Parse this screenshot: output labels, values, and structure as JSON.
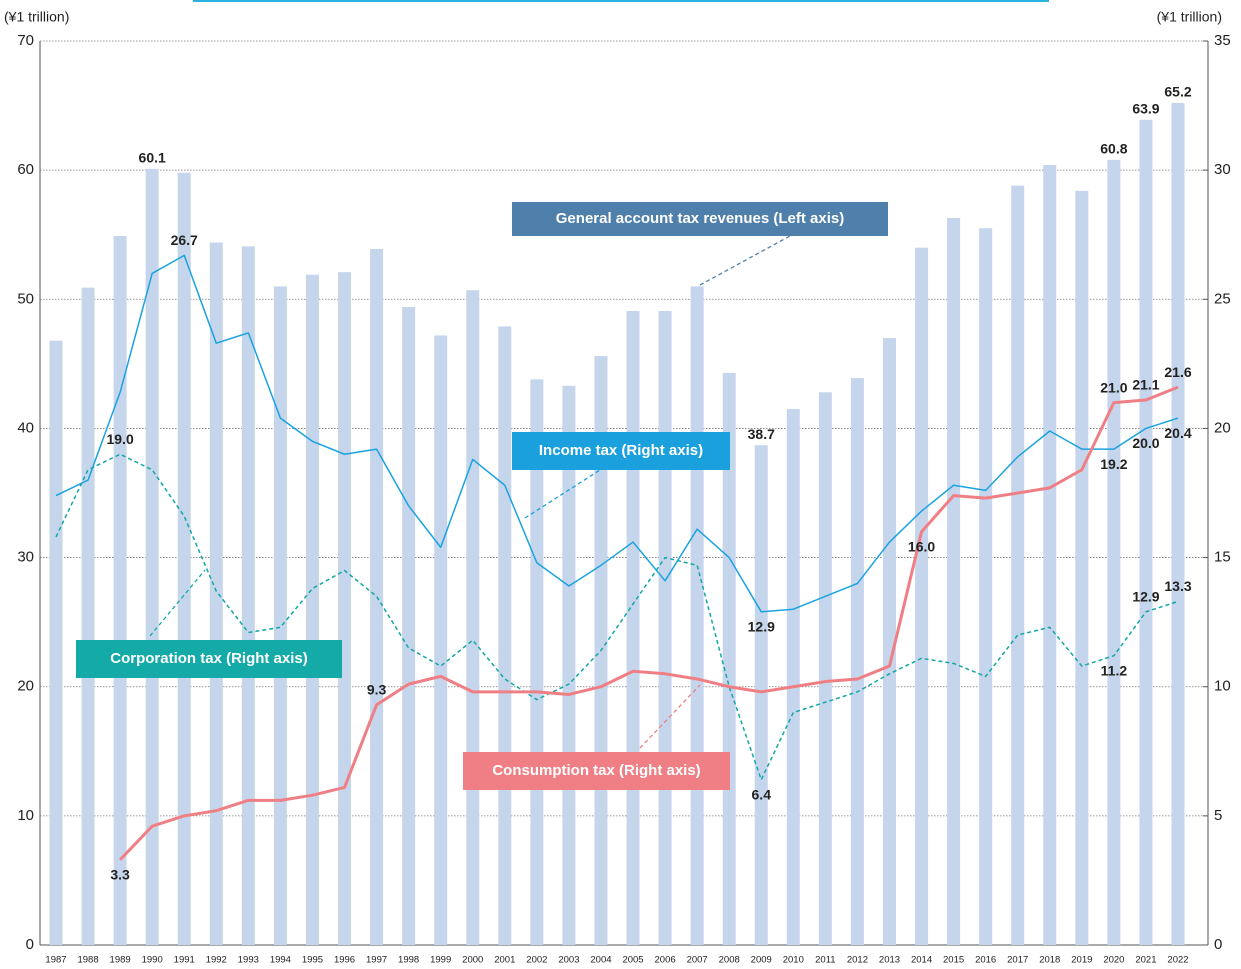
{
  "chart_data": {
    "type": "bar_line",
    "y_axis_label": "(¥1 trillion)",
    "y2_axis_label": "(¥1 trillion)",
    "categories": [
      "1987",
      "1988",
      "1989",
      "1990",
      "1991",
      "1992",
      "1993",
      "1994",
      "1995",
      "1996",
      "1997",
      "1998",
      "1999",
      "2000",
      "2001",
      "2002",
      "2003",
      "2004",
      "2005",
      "2006",
      "2007",
      "2008",
      "2009",
      "2010",
      "2011",
      "2012",
      "2013",
      "2014",
      "2015",
      "2016",
      "2017",
      "2018",
      "2019",
      "2020",
      "2021",
      "2022"
    ],
    "ylim": [
      0,
      70
    ],
    "yticks": [
      0,
      10,
      20,
      30,
      40,
      50,
      60,
      70
    ],
    "y2lim": [
      0,
      35
    ],
    "y2ticks": [
      0,
      5,
      10,
      15,
      20,
      25,
      30,
      35
    ],
    "grid": true,
    "series": [
      {
        "name": "General account tax revenues (Left axis)",
        "type": "bar",
        "color": "#c5d6ec",
        "label_color": "#4f80ab",
        "values": [
          46.8,
          50.9,
          54.9,
          60.1,
          59.8,
          54.4,
          54.1,
          51.0,
          51.9,
          52.1,
          53.9,
          49.4,
          47.2,
          50.7,
          47.9,
          43.8,
          43.3,
          45.6,
          49.1,
          49.1,
          51.0,
          44.3,
          38.7,
          41.5,
          42.8,
          43.9,
          47.0,
          54.0,
          56.3,
          55.5,
          58.8,
          60.4,
          58.4,
          60.8,
          63.9,
          65.2
        ],
        "value_labels": [
          null,
          null,
          null,
          "60.1",
          null,
          null,
          null,
          null,
          null,
          null,
          null,
          null,
          null,
          null,
          null,
          null,
          null,
          null,
          null,
          null,
          null,
          null,
          "38.7",
          null,
          null,
          null,
          null,
          null,
          null,
          null,
          null,
          null,
          null,
          "60.8",
          "63.9",
          "65.2"
        ]
      },
      {
        "name": "Income tax (Right axis)",
        "type": "line",
        "axis": "y2",
        "color": "#1aa3e0",
        "label_color": "#1aa0dd",
        "values": [
          17.4,
          18.0,
          21.4,
          26.0,
          26.7,
          23.3,
          23.7,
          20.4,
          19.5,
          19.0,
          19.2,
          17.0,
          15.4,
          18.8,
          17.8,
          14.8,
          13.9,
          14.7,
          15.6,
          14.1,
          16.1,
          15.0,
          12.9,
          13.0,
          13.5,
          14.0,
          15.6,
          16.8,
          17.8,
          17.6,
          18.9,
          19.9,
          19.2,
          19.2,
          20.0,
          20.4
        ],
        "value_labels": [
          null,
          null,
          null,
          null,
          "26.7",
          null,
          null,
          null,
          null,
          null,
          null,
          null,
          null,
          null,
          null,
          null,
          null,
          null,
          null,
          null,
          null,
          null,
          "12.9",
          null,
          null,
          null,
          null,
          null,
          null,
          null,
          null,
          null,
          null,
          "19.2",
          "20.0",
          "20.4"
        ]
      },
      {
        "name": "Corporation tax (Right axis)",
        "type": "line",
        "axis": "y2",
        "dashed": true,
        "color": "#12a7a5",
        "label_color": "#14aaa8",
        "values": [
          15.8,
          18.4,
          19.0,
          18.4,
          16.6,
          13.7,
          12.1,
          12.3,
          13.8,
          14.5,
          13.5,
          11.5,
          10.8,
          11.8,
          10.3,
          9.5,
          10.1,
          11.4,
          13.2,
          15.0,
          14.7,
          10.0,
          6.4,
          9.0,
          9.4,
          9.8,
          10.5,
          11.1,
          10.9,
          10.4,
          12.0,
          12.3,
          10.8,
          11.2,
          12.9,
          13.3
        ],
        "value_labels": [
          null,
          null,
          "19.0",
          null,
          null,
          null,
          null,
          null,
          null,
          null,
          null,
          null,
          null,
          null,
          null,
          null,
          null,
          null,
          null,
          null,
          null,
          null,
          "6.4",
          null,
          null,
          null,
          null,
          null,
          null,
          null,
          null,
          null,
          null,
          "11.2",
          "12.9",
          "13.3"
        ]
      },
      {
        "name": "Consumption tax (Right axis)",
        "type": "line",
        "axis": "y2",
        "width": 3,
        "color": "#ef7f84",
        "label_color": "#ef7f84",
        "values": [
          null,
          null,
          3.3,
          4.6,
          5.0,
          5.2,
          5.6,
          5.6,
          5.8,
          6.1,
          9.3,
          10.1,
          10.4,
          9.8,
          9.8,
          9.8,
          9.7,
          10.0,
          10.6,
          10.5,
          10.3,
          10.0,
          9.8,
          10.0,
          10.2,
          10.3,
          10.8,
          16.0,
          17.4,
          17.3,
          17.5,
          17.7,
          18.4,
          21.0,
          21.1,
          21.6
        ],
        "value_labels": [
          null,
          null,
          "3.3",
          null,
          null,
          null,
          null,
          null,
          null,
          null,
          "9.3",
          null,
          null,
          null,
          null,
          null,
          null,
          null,
          null,
          null,
          null,
          null,
          null,
          null,
          null,
          null,
          null,
          "16.0",
          null,
          null,
          null,
          null,
          null,
          "21.0",
          "21.1",
          "21.6"
        ]
      }
    ]
  }
}
